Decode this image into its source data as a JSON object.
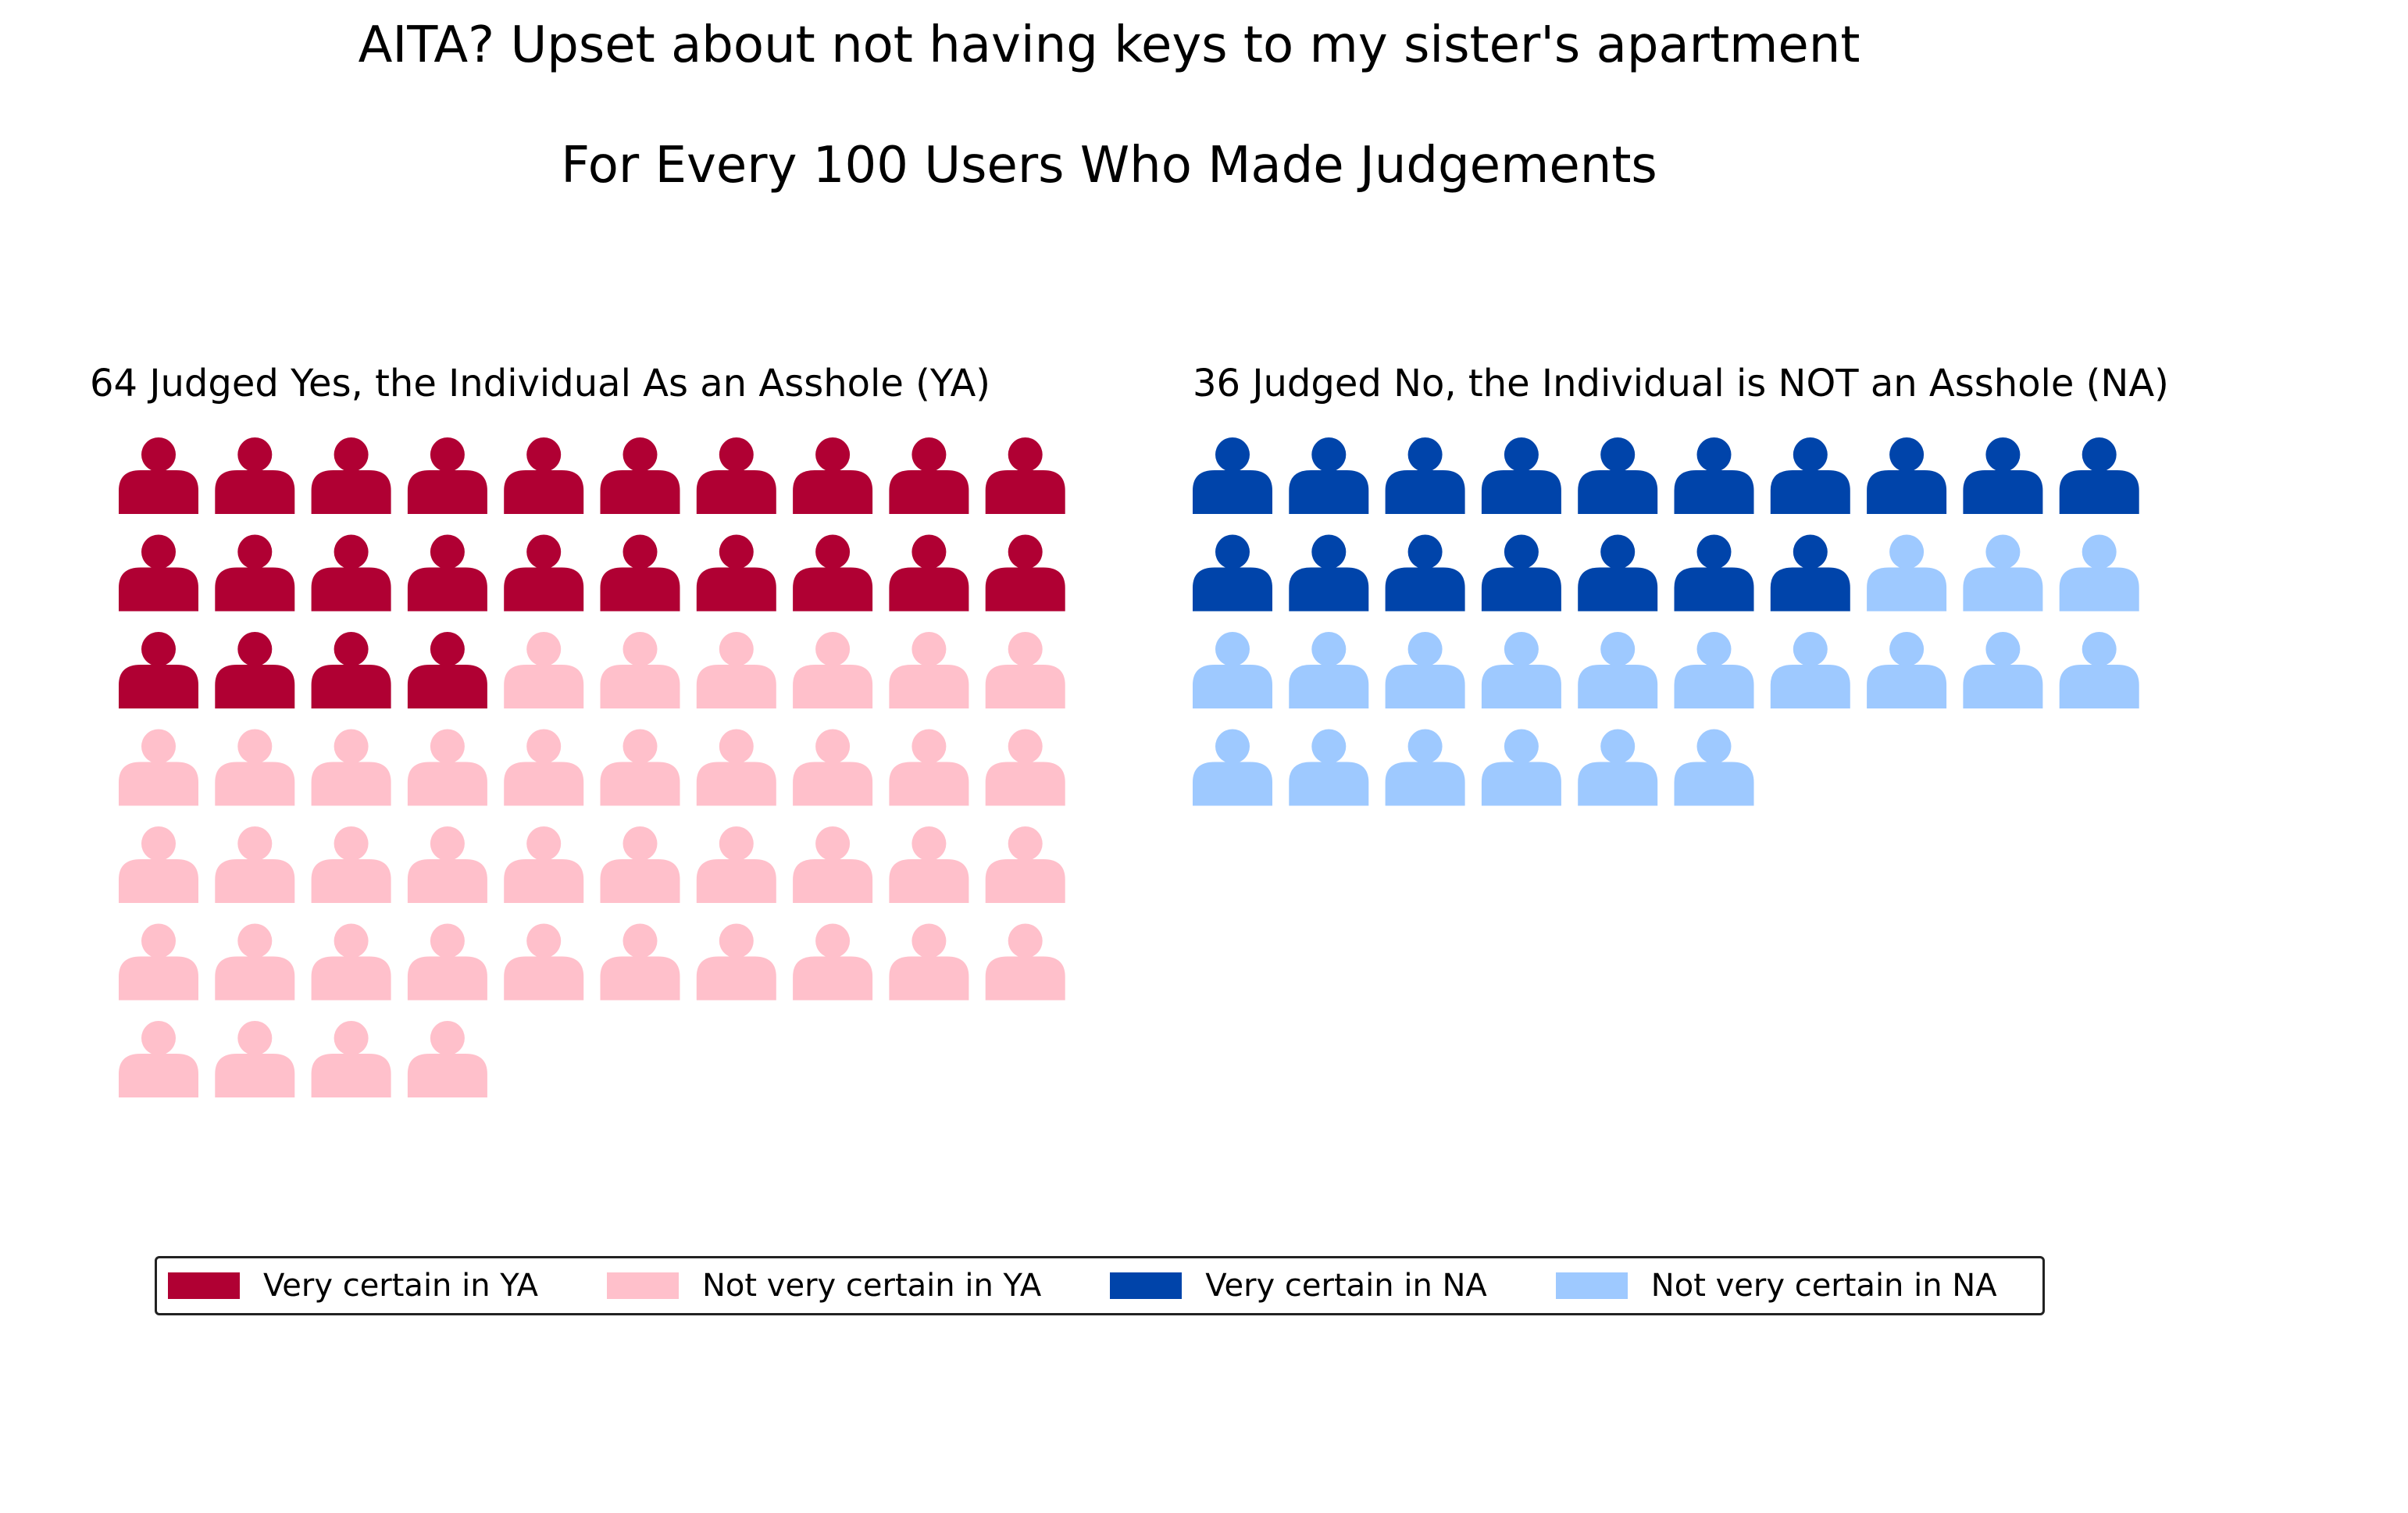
{
  "title_line1": "AITA? Upset about not having keys to my sister's apartment",
  "title_line2": "For Every 100 Users Who Made Judgements",
  "chart_data": {
    "type": "waffle",
    "total": 100,
    "panels": [
      {
        "key": "ya",
        "title": "64 Judged Yes, the Individual As an Asshole (YA)",
        "total": 64,
        "segments": [
          {
            "name": "Very certain in YA",
            "count": 24,
            "color": "#b00033"
          },
          {
            "name": "Not very certain in YA",
            "count": 40,
            "color": "#ffc0cb"
          }
        ]
      },
      {
        "key": "na",
        "title": "36 Judged No, the Individual is NOT an Asshole (NA)",
        "total": 36,
        "segments": [
          {
            "name": "Very certain in NA",
            "count": 17,
            "color": "#0044aa"
          },
          {
            "name": "Not very certain in NA",
            "count": 19,
            "color": "#9ec9ff"
          }
        ]
      }
    ],
    "icon": "person-icon",
    "columns": 10,
    "legend": {
      "placement": "bottom",
      "items": [
        {
          "label": "Very certain in YA",
          "color": "#b00033"
        },
        {
          "label": "Not very certain in YA",
          "color": "#ffc0cb"
        },
        {
          "label": "Very certain in NA",
          "color": "#0044aa"
        },
        {
          "label": "Not very certain in NA",
          "color": "#9ec9ff"
        }
      ]
    }
  }
}
